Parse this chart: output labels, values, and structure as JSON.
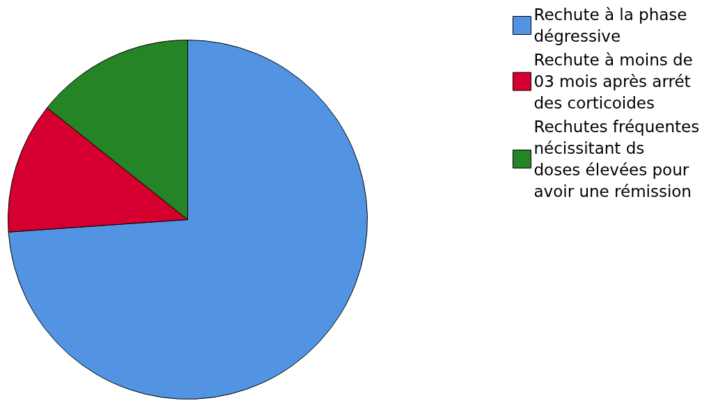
{
  "chart_data": {
    "type": "pie",
    "categories": [
      "Rechute à la phase dégressive",
      "Rechute à moins de 03 mois après arrét des corticoides",
      "Rechutes fréquentes nécissitant ds doses élevées pour avoir une rémission"
    ],
    "values": [
      73.9,
      11.8,
      14.3
    ],
    "colors": [
      "#5294e2",
      "#d5002f",
      "#258425"
    ],
    "legend": "top right"
  }
}
